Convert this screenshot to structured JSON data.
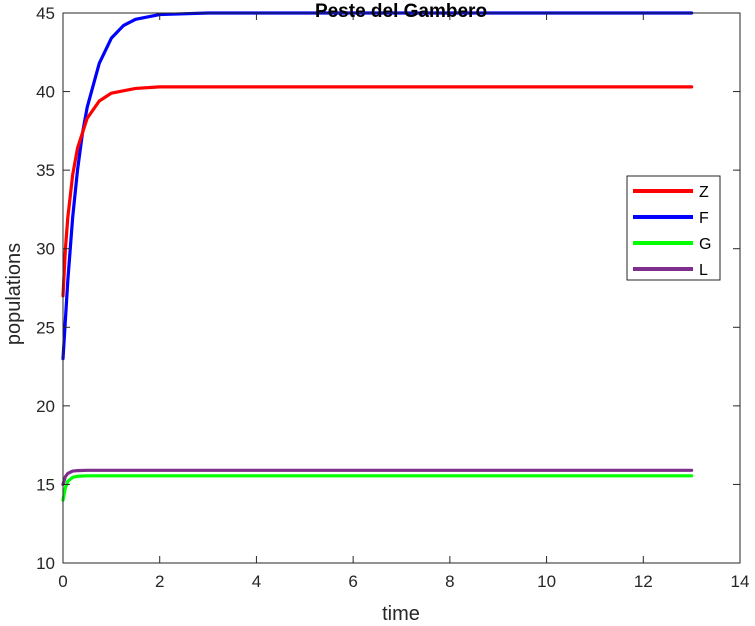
{
  "chart_data": {
    "type": "line",
    "title": "Peste del Gambero",
    "xlabel": "time",
    "ylabel": "populations",
    "xlim": [
      0,
      14
    ],
    "ylim": [
      10,
      45
    ],
    "xticks": [
      0,
      2,
      4,
      6,
      8,
      10,
      12,
      14
    ],
    "yticks": [
      10,
      15,
      20,
      25,
      30,
      35,
      40,
      45
    ],
    "grid": false,
    "legend_position": "right",
    "series": [
      {
        "name": "Z",
        "color": "#ff0000",
        "x": [
          0,
          0.05,
          0.1,
          0.2,
          0.3,
          0.5,
          0.75,
          1.0,
          1.5,
          2.0,
          3.0,
          13.0
        ],
        "y": [
          27.0,
          30.0,
          32.0,
          34.7,
          36.4,
          38.3,
          39.4,
          39.9,
          40.2,
          40.3,
          40.3,
          40.3
        ]
      },
      {
        "name": "F",
        "color": "#0000ff",
        "x": [
          0,
          0.1,
          0.2,
          0.3,
          0.4,
          0.5,
          0.75,
          1.0,
          1.25,
          1.5,
          2.0,
          3.0,
          13.0
        ],
        "y": [
          23.0,
          28.0,
          32.0,
          35.0,
          37.3,
          39.0,
          41.8,
          43.4,
          44.2,
          44.6,
          44.9,
          45.0,
          45.0
        ]
      },
      {
        "name": "G",
        "color": "#00ff00",
        "x": [
          0,
          0.05,
          0.1,
          0.2,
          0.3,
          0.5,
          13.0
        ],
        "y": [
          14.0,
          14.8,
          15.2,
          15.45,
          15.52,
          15.55,
          15.55
        ]
      },
      {
        "name": "L",
        "color": "#7e2f8e",
        "x": [
          0,
          0.05,
          0.1,
          0.2,
          0.3,
          0.5,
          13.0
        ],
        "y": [
          15.0,
          15.5,
          15.7,
          15.85,
          15.88,
          15.9,
          15.9
        ]
      }
    ]
  }
}
